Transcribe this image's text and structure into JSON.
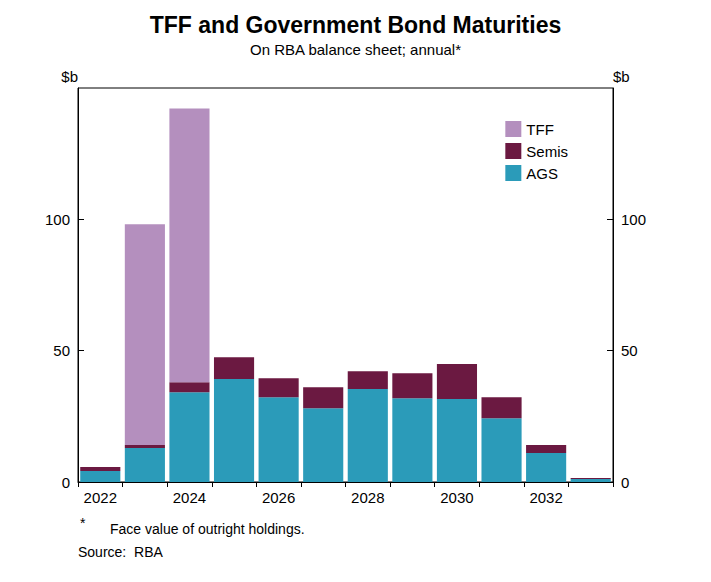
{
  "chart_data": {
    "type": "bar",
    "title": "TFF and Government Bond Maturities",
    "subtitle": "On RBA balance sheet; annual*",
    "ylabel": "$b",
    "y2label": "$b",
    "footnote_marker": "*",
    "footnote": "Face value of outright holdings.",
    "source": "Source:  RBA",
    "categories": [
      "2022",
      null,
      "2024",
      null,
      "2026",
      null,
      "2028",
      null,
      "2030",
      null,
      "2032",
      null
    ],
    "series": [
      {
        "name": "AGS",
        "color": "#2b9bb9",
        "values": [
          4.2,
          12.9,
          34.2,
          39.2,
          32.3,
          28.1,
          35.4,
          31.9,
          31.6,
          24.3,
          11.0,
          1.1
        ]
      },
      {
        "name": "Semis",
        "color": "#6b1941",
        "values": [
          1.5,
          1.2,
          3.8,
          8.3,
          7.2,
          8.0,
          6.8,
          9.5,
          13.3,
          8.0,
          3.1,
          0.4
        ]
      },
      {
        "name": "TFF",
        "color": "#b48fbe",
        "values": [
          0,
          84.0,
          104.2,
          0,
          0,
          0,
          0,
          0,
          0,
          0,
          0,
          0
        ]
      }
    ],
    "ylim": [
      0,
      150
    ],
    "yticks": [
      0,
      50,
      100
    ],
    "y2lim": [
      0,
      150
    ],
    "y2ticks": [
      0,
      50,
      100
    ],
    "stacked": true,
    "grid": false,
    "legend": "top-right"
  }
}
